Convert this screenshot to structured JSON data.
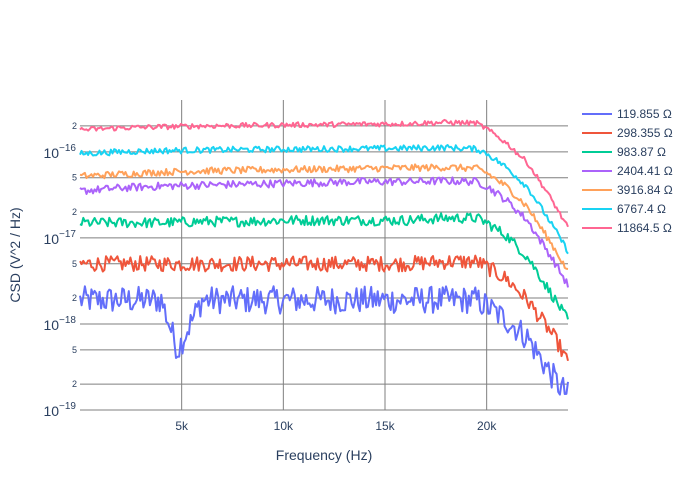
{
  "chart_data": {
    "type": "line",
    "xlabel": "Frequency (Hz)",
    "ylabel": "CSD (V^2 / Hz)",
    "xlim": [
      0,
      24000
    ],
    "ylim": [
      1e-19,
      4e-16
    ],
    "yscale": "log",
    "grid": true,
    "legend_position": "top-right",
    "x_ticks": [
      {
        "value": 5000,
        "label": "5k"
      },
      {
        "value": 10000,
        "label": "10k"
      },
      {
        "value": 15000,
        "label": "15k"
      },
      {
        "value": 20000,
        "label": "20k"
      }
    ],
    "y_major_ticks": [
      {
        "value": 1e-19,
        "label": "10",
        "exp": "−19"
      },
      {
        "value": 1e-18,
        "label": "10",
        "exp": "−18"
      },
      {
        "value": 1e-17,
        "label": "10",
        "exp": "−17"
      },
      {
        "value": 1e-16,
        "label": "10",
        "exp": "−16"
      }
    ],
    "y_minor_ticks": [
      {
        "value": 2e-19,
        "label": "2"
      },
      {
        "value": 5e-19,
        "label": "5"
      },
      {
        "value": 2e-18,
        "label": "2"
      },
      {
        "value": 5e-18,
        "label": "5"
      },
      {
        "value": 2e-17,
        "label": "2"
      },
      {
        "value": 5e-17,
        "label": "5"
      },
      {
        "value": 2e-16,
        "label": "2"
      }
    ],
    "series": [
      {
        "name": "119.855 Ω",
        "color": "#636efa",
        "x": [
          0,
          2000,
          4000,
          4800,
          6000,
          8000,
          10000,
          12000,
          14000,
          16000,
          18000,
          19500,
          20000,
          21000,
          22000,
          22500,
          23000,
          23500,
          24000
        ],
        "y": [
          1.9e-18,
          1.9e-18,
          1.9e-18,
          5e-19,
          1.9e-18,
          1.9e-18,
          1.9e-18,
          1.9e-18,
          1.9e-18,
          1.9e-18,
          1.9e-18,
          1.9e-18,
          1.6e-18,
          1.1e-18,
          7e-19,
          4.5e-19,
          3e-19,
          2e-19,
          1.5e-19
        ]
      },
      {
        "name": "298.355 Ω",
        "color": "#ef553b",
        "x": [
          0,
          2000,
          4000,
          6000,
          8000,
          10000,
          12000,
          14000,
          16000,
          18000,
          19500,
          20000,
          21000,
          22000,
          22500,
          23000,
          23500,
          24000
        ],
        "y": [
          5e-18,
          5e-18,
          5e-18,
          5e-18,
          5e-18,
          5e-18,
          5e-18,
          5e-18,
          5e-18,
          5.3e-18,
          5.3e-18,
          4.6e-18,
          3.3e-18,
          1.9e-18,
          1.3e-18,
          9e-19,
          6e-19,
          3.5e-19
        ]
      },
      {
        "name": "983.87 Ω",
        "color": "#00cc96",
        "x": [
          0,
          2000,
          4000,
          6000,
          8000,
          10000,
          12000,
          14000,
          16000,
          18000,
          19500,
          20000,
          21000,
          22000,
          22500,
          23000,
          23500,
          24000
        ],
        "y": [
          1.5e-17,
          1.5e-17,
          1.5e-17,
          1.55e-17,
          1.55e-17,
          1.6e-17,
          1.6e-17,
          1.6e-17,
          1.6e-17,
          1.7e-17,
          1.7e-17,
          1.5e-17,
          1.05e-17,
          6e-18,
          4e-18,
          2.6e-18,
          1.7e-18,
          1.1e-18
        ]
      },
      {
        "name": "2404.41 Ω",
        "color": "#ab63fa",
        "x": [
          0,
          2000,
          4000,
          6000,
          8000,
          10000,
          12000,
          14000,
          16000,
          18000,
          19500,
          20000,
          21000,
          22000,
          22500,
          23000,
          23500,
          24000
        ],
        "y": [
          3.5e-17,
          3.8e-17,
          4e-17,
          4.1e-17,
          4.2e-17,
          4.3e-17,
          4.4e-17,
          4.5e-17,
          4.5e-17,
          4.6e-17,
          4.5e-17,
          4e-17,
          2.7e-17,
          1.6e-17,
          1.05e-17,
          7e-18,
          4.5e-18,
          2.8e-18
        ]
      },
      {
        "name": "3916.84 Ω",
        "color": "#ffa15a",
        "x": [
          0,
          2000,
          4000,
          6000,
          8000,
          10000,
          12000,
          14000,
          16000,
          18000,
          19500,
          20000,
          21000,
          22000,
          22500,
          23000,
          23500,
          24000
        ],
        "y": [
          5.2e-17,
          5.5e-17,
          5.8e-17,
          6e-17,
          6.1e-17,
          6.2e-17,
          6.3e-17,
          6.4e-17,
          6.5e-17,
          6.6e-17,
          6.4e-17,
          5.7e-17,
          3.9e-17,
          2.3e-17,
          1.5e-17,
          1e-17,
          6.5e-18,
          4e-18
        ]
      },
      {
        "name": "6767.4 Ω",
        "color": "#19d3f3",
        "x": [
          0,
          2000,
          4000,
          6000,
          8000,
          10000,
          12000,
          14000,
          16000,
          18000,
          19500,
          20000,
          21000,
          22000,
          22500,
          23000,
          23500,
          24000
        ],
        "y": [
          9.5e-17,
          1e-16,
          1.03e-16,
          1.05e-16,
          1.06e-16,
          1.07e-16,
          1.08e-16,
          1.09e-16,
          1.1e-16,
          1.12e-16,
          1.08e-16,
          9.6e-17,
          6.5e-17,
          3.9e-17,
          2.6e-17,
          1.7e-17,
          1.1e-17,
          7e-18
        ]
      },
      {
        "name": "11864.5 Ω",
        "color": "#ff6692",
        "x": [
          0,
          2000,
          4000,
          6000,
          8000,
          10000,
          12000,
          14000,
          16000,
          18000,
          19500,
          20000,
          21000,
          22000,
          22500,
          23000,
          23500,
          24000
        ],
        "y": [
          1.8e-16,
          1.9e-16,
          1.95e-16,
          2e-16,
          2.02e-16,
          2.05e-16,
          2.07e-16,
          2.1e-16,
          2.12e-16,
          2.2e-16,
          2.15e-16,
          1.85e-16,
          1.25e-16,
          7.5e-17,
          5e-17,
          3.3e-17,
          2.1e-17,
          1.3e-17
        ]
      }
    ]
  }
}
